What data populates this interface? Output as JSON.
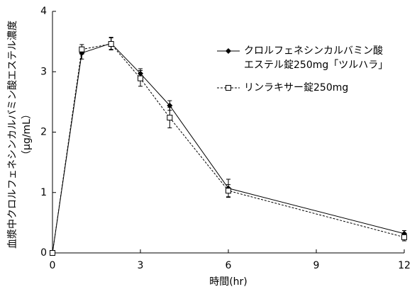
{
  "chart_data": {
    "type": "line",
    "xlabel": "時間(hr)",
    "ylabel": [
      "血漿中クロルフェネシンカルバミン酸エステル濃度",
      "（μg/mL）"
    ],
    "x": [
      0,
      1,
      2,
      3,
      4,
      6,
      12
    ],
    "series": [
      {
        "name": "クロルフェネシンカルバミン酸\nエステル錠250mg「ツルハラ」",
        "color": "#000000",
        "marker": "diamond",
        "dash": false,
        "values": [
          0,
          3.31,
          3.47,
          2.97,
          2.44,
          1.07,
          0.32
        ],
        "errors": [
          0,
          0.1,
          0.1,
          0.08,
          0.08,
          0.15,
          0.05
        ]
      },
      {
        "name": "リンラキサー錠250mg",
        "color": "#000000",
        "marker": "square",
        "dash": true,
        "values": [
          0,
          3.37,
          3.46,
          2.89,
          2.24,
          1.03,
          0.26
        ],
        "errors": [
          0,
          0.08,
          0.1,
          0.13,
          0.17,
          0.1,
          0.06
        ]
      }
    ],
    "xlim": [
      0,
      12
    ],
    "xticks": [
      0,
      3,
      6,
      9,
      12
    ],
    "ylim": [
      0,
      4
    ],
    "yticks": [
      0,
      1,
      2,
      3,
      4
    ]
  }
}
